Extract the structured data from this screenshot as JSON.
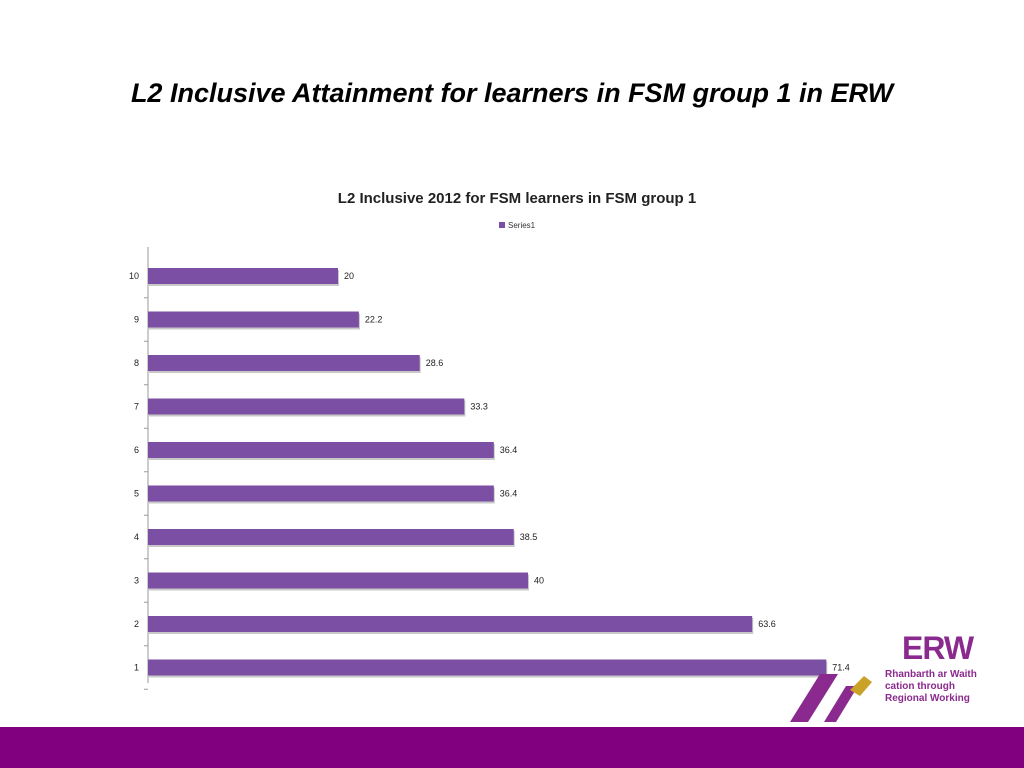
{
  "slide": {
    "title": "L2 Inclusive Attainment for learners in FSM group 1 in ERW"
  },
  "chart_data": {
    "type": "bar",
    "orientation": "horizontal",
    "title": "L2 Inclusive 2012 for FSM learners in FSM group 1",
    "categories": [
      "1",
      "2",
      "3",
      "4",
      "5",
      "6",
      "7",
      "8",
      "9",
      "10"
    ],
    "series": [
      {
        "name": "Series1",
        "values": [
          71.4,
          63.6,
          40,
          38.5,
          36.4,
          36.4,
          33.3,
          28.6,
          22.2,
          20
        ]
      }
    ],
    "data_labels": true,
    "legend_position": "top",
    "grid": false,
    "xlim": [
      0,
      80
    ],
    "bar_color": "#7b4fa3"
  },
  "logo": {
    "word": "ERW",
    "line1": "Rhanbarth ar Waith",
    "line2": "cation through",
    "line3": "Regional Working",
    "text_color": "#8a2a8e",
    "line3_color": "#c9a227"
  },
  "footer": {
    "color": "#800080"
  }
}
